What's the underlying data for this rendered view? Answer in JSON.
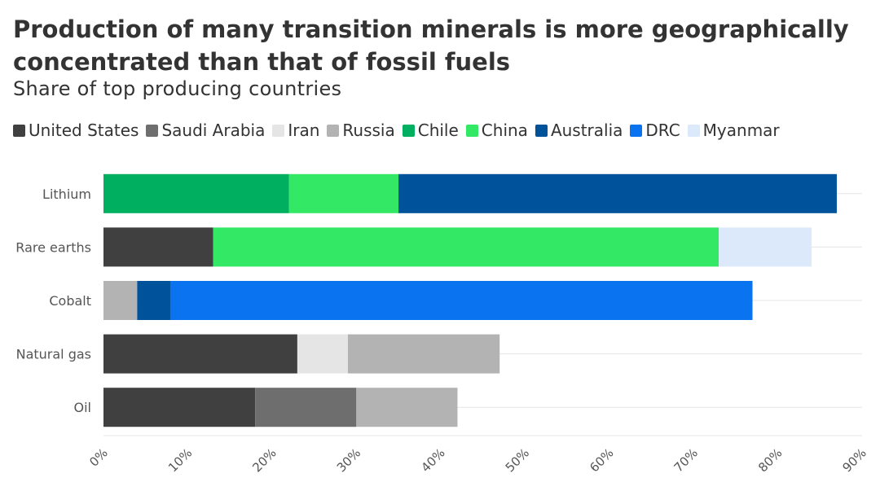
{
  "title": "Production of many transition minerals is more geographically concentrated than that of fossil fuels",
  "subtitle": "Share of top producing countries",
  "legend": [
    {
      "label": "United States",
      "color": "#404040"
    },
    {
      "label": "Saudi Arabia",
      "color": "#6e6e6e"
    },
    {
      "label": "Iran",
      "color": "#e5e5e5"
    },
    {
      "label": "Russia",
      "color": "#b3b3b3"
    },
    {
      "label": "Chile",
      "color": "#00b060"
    },
    {
      "label": "China",
      "color": "#33e865"
    },
    {
      "label": "Australia",
      "color": "#00529b"
    },
    {
      "label": "DRC",
      "color": "#0a73f0"
    },
    {
      "label": "Myanmar",
      "color": "#dbe9fa"
    }
  ],
  "chart_data": {
    "type": "bar",
    "orientation": "horizontal",
    "stacked": true,
    "categories": [
      "Lithium",
      "Rare earths",
      "Cobalt",
      "Natural gas",
      "Oil"
    ],
    "series": [
      {
        "name": "United States",
        "color": "#404040",
        "values": [
          0,
          13,
          0,
          23,
          18
        ]
      },
      {
        "name": "Saudi Arabia",
        "color": "#6e6e6e",
        "values": [
          0,
          0,
          0,
          0,
          12
        ]
      },
      {
        "name": "Iran",
        "color": "#e5e5e5",
        "values": [
          0,
          0,
          0,
          6,
          0
        ]
      },
      {
        "name": "Russia",
        "color": "#b3b3b3",
        "values": [
          0,
          0,
          4,
          18,
          12
        ]
      },
      {
        "name": "Chile",
        "color": "#00b060",
        "values": [
          22,
          0,
          0,
          0,
          0
        ]
      },
      {
        "name": "China",
        "color": "#33e865",
        "values": [
          13,
          60,
          0,
          0,
          0
        ]
      },
      {
        "name": "Australia",
        "color": "#00529b",
        "values": [
          52,
          0,
          4,
          0,
          0
        ]
      },
      {
        "name": "DRC",
        "color": "#0a73f0",
        "values": [
          0,
          0,
          69,
          0,
          0
        ]
      },
      {
        "name": "Myanmar",
        "color": "#dbe9fa",
        "values": [
          0,
          11,
          0,
          0,
          0
        ]
      }
    ],
    "xlim": [
      0,
      90
    ],
    "xticks": [
      "0%",
      "10%",
      "20%",
      "30%",
      "40%",
      "50%",
      "60%",
      "70%",
      "80%",
      "90%"
    ],
    "xtick_values": [
      0,
      10,
      20,
      30,
      40,
      50,
      60,
      70,
      80,
      90
    ],
    "grid": true,
    "legend_position": "top-left"
  }
}
